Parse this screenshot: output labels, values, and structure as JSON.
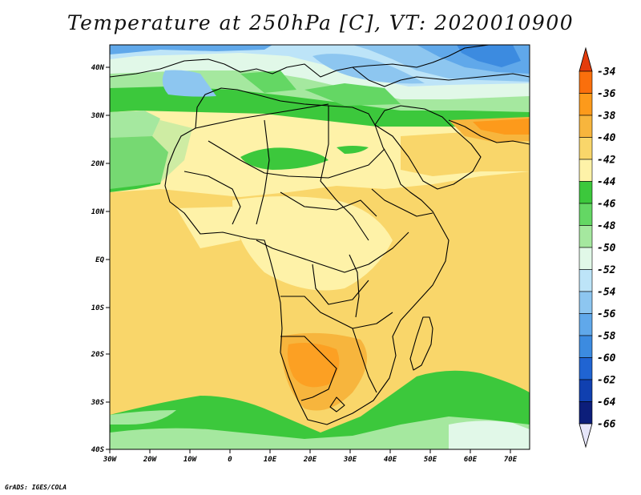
{
  "title": "Temperature at 250hPa [C], VT: 2020010900",
  "credit": "GrADS: IGES/COLA",
  "map": {
    "lon_ticks": [
      "30W",
      "20W",
      "10W",
      "0",
      "10E",
      "20E",
      "30E",
      "40E",
      "50E",
      "60E",
      "70E"
    ],
    "lat_ticks": [
      "40N",
      "30N",
      "20N",
      "10N",
      "EQ",
      "10S",
      "20S",
      "30S",
      "40S"
    ]
  },
  "colorbar": {
    "labels": [
      "-34",
      "-36",
      "-38",
      "-40",
      "-42",
      "-44",
      "-46",
      "-48",
      "-50",
      "-52",
      "-54",
      "-56",
      "-58",
      "-60",
      "-62",
      "-64",
      "-66"
    ],
    "colors": [
      "#e43c0c",
      "#fa6f0c",
      "#fd9a1b",
      "#f7b53d",
      "#f9d66a",
      "#fef2a8",
      "#3cc83c",
      "#64d764",
      "#a5e89f",
      "#e1f8e8",
      "#bde4f8",
      "#8dc6f0",
      "#60a8ea",
      "#3c8be0",
      "#2064d2",
      "#1040b0",
      "#0c1e7a",
      "#e6e6fa"
    ]
  }
}
